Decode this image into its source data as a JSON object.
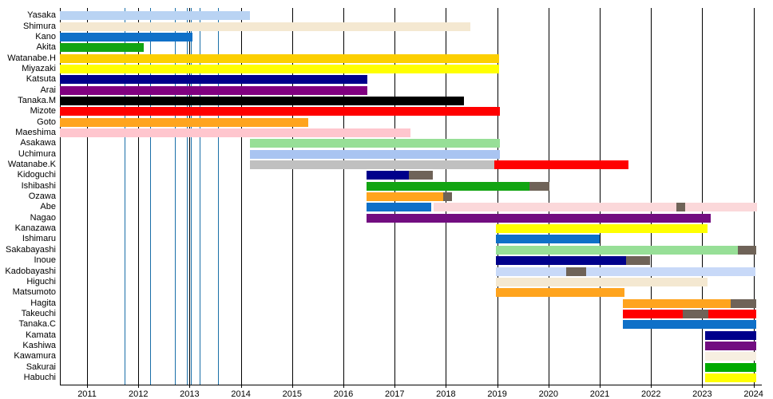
{
  "chart_data": {
    "type": "gantt",
    "title": "",
    "xlabel": "",
    "ylabel": "",
    "x_axis": {
      "min": 2010.47,
      "max": 2024.15,
      "tick_years": [
        2011,
        2012,
        2013,
        2014,
        2015,
        2016,
        2017,
        2018,
        2019,
        2020,
        2021,
        2022,
        2023,
        2024
      ],
      "tick_labels": [
        "2011",
        "2012",
        "2013",
        "2014",
        "2015",
        "2016",
        "2017",
        "2018",
        "2019",
        "2020",
        "2021",
        "2022",
        "2023",
        "2024"
      ],
      "grid": true
    },
    "event_lines": {
      "color": "#1a6fa8",
      "years": [
        2011.73,
        2012.23,
        2012.71,
        2012.95,
        2013.02,
        2013.19,
        2013.55
      ]
    },
    "palette": {
      "lightblue": "#b9d3f3",
      "wheat": "#f4e8d1",
      "blue": "#0f70c8",
      "green": "#12a412",
      "gold": "#fccf00",
      "yellow": "#ffff00",
      "navy": "#00008b",
      "purple": "#800080",
      "black": "#000000",
      "red": "#ff0000",
      "orange": "#ffa41e",
      "pink": "#ffc6ce",
      "lightgreen": "#97df97",
      "periblue": "#a9c4f1",
      "silver": "#c0c0c0",
      "gray": "#6f6358",
      "palepink": "#fbd8da",
      "darkpurple": "#720d80",
      "periwinkle": "#c8d9f8",
      "linen": "#f7efe1",
      "green2": "#00aa00"
    },
    "rows": [
      {
        "name": "Yasaka",
        "segments": [
          [
            2010.47,
            2014.17,
            "lightblue"
          ]
        ]
      },
      {
        "name": "Shimura",
        "segments": [
          [
            2010.47,
            2018.47,
            "wheat"
          ]
        ]
      },
      {
        "name": "Kano",
        "segments": [
          [
            2010.47,
            2013.05,
            "blue"
          ]
        ]
      },
      {
        "name": "Akita",
        "segments": [
          [
            2010.47,
            2012.1,
            "green"
          ]
        ]
      },
      {
        "name": "Watanabe.H",
        "segments": [
          [
            2010.47,
            2019.03,
            "gold"
          ]
        ]
      },
      {
        "name": "Miyazaki",
        "segments": [
          [
            2010.47,
            2019.03,
            "yellow"
          ]
        ]
      },
      {
        "name": "Katsuta",
        "segments": [
          [
            2010.47,
            2016.46,
            "navy"
          ]
        ]
      },
      {
        "name": "Arai",
        "segments": [
          [
            2010.47,
            2016.46,
            "purple"
          ]
        ]
      },
      {
        "name": "Tanaka.M",
        "segments": [
          [
            2010.47,
            2018.35,
            "black"
          ]
        ]
      },
      {
        "name": "Mizote",
        "segments": [
          [
            2010.47,
            2019.05,
            "red"
          ]
        ]
      },
      {
        "name": "Goto",
        "segments": [
          [
            2010.47,
            2015.32,
            "orange"
          ]
        ]
      },
      {
        "name": "Maeshima",
        "segments": [
          [
            2010.47,
            2017.3,
            "pink"
          ]
        ]
      },
      {
        "name": "Asakawa",
        "segments": [
          [
            2014.18,
            2019.05,
            "lightgreen"
          ]
        ]
      },
      {
        "name": "Uchimura",
        "segments": [
          [
            2014.18,
            2019.05,
            "periblue"
          ]
        ]
      },
      {
        "name": "Watanabe.K",
        "segments": [
          [
            2014.18,
            2018.95,
            "silver"
          ],
          [
            2018.95,
            2021.56,
            "red"
          ]
        ]
      },
      {
        "name": "Kidoguchi",
        "segments": [
          [
            2016.45,
            2017.28,
            "navy"
          ],
          [
            2017.28,
            2017.75,
            "gray"
          ]
        ]
      },
      {
        "name": "Ishibashi",
        "segments": [
          [
            2016.45,
            2019.63,
            "green"
          ],
          [
            2019.63,
            2020.02,
            "gray"
          ]
        ]
      },
      {
        "name": "Ozawa",
        "segments": [
          [
            2016.45,
            2017.95,
            "orange"
          ],
          [
            2017.95,
            2018.12,
            "gray"
          ]
        ]
      },
      {
        "name": "Abe",
        "segments": [
          [
            2016.45,
            2017.72,
            "blue"
          ],
          [
            2017.76,
            2022.49,
            "palepink"
          ],
          [
            2022.49,
            2022.66,
            "gray"
          ],
          [
            2022.66,
            2024.07,
            "palepink"
          ]
        ]
      },
      {
        "name": "Nagao",
        "segments": [
          [
            2016.45,
            2023.17,
            "darkpurple"
          ]
        ]
      },
      {
        "name": "Kanazawa",
        "segments": [
          [
            2018.98,
            2023.11,
            "yellow"
          ]
        ]
      },
      {
        "name": "Ishimaru",
        "segments": [
          [
            2018.98,
            2021.0,
            "blue"
          ]
        ]
      },
      {
        "name": "Sakabayashi",
        "segments": [
          [
            2018.98,
            2023.7,
            "lightgreen"
          ],
          [
            2023.7,
            2024.06,
            "gray"
          ]
        ]
      },
      {
        "name": "Inoue",
        "segments": [
          [
            2018.98,
            2021.51,
            "navy"
          ],
          [
            2021.51,
            2021.98,
            "gray"
          ]
        ]
      },
      {
        "name": "Kadobayashi",
        "segments": [
          [
            2018.98,
            2020.35,
            "periwinkle"
          ],
          [
            2020.35,
            2020.74,
            "gray"
          ],
          [
            2020.74,
            2024.04,
            "periwinkle"
          ]
        ]
      },
      {
        "name": "Higuchi",
        "segments": [
          [
            2018.98,
            2023.1,
            "wheat"
          ]
        ]
      },
      {
        "name": "Matsumoto",
        "segments": [
          [
            2018.98,
            2021.48,
            "orange"
          ]
        ]
      },
      {
        "name": "Hagita",
        "segments": [
          [
            2021.45,
            2023.55,
            "orange"
          ],
          [
            2023.55,
            2024.05,
            "gray"
          ]
        ]
      },
      {
        "name": "Takeuchi",
        "segments": [
          [
            2021.45,
            2022.62,
            "red"
          ],
          [
            2022.62,
            2023.11,
            "gray"
          ],
          [
            2023.11,
            2024.05,
            "red"
          ]
        ]
      },
      {
        "name": "Tanaka.C",
        "segments": [
          [
            2021.45,
            2024.05,
            "blue"
          ]
        ]
      },
      {
        "name": "Kamata",
        "segments": [
          [
            2023.05,
            2024.05,
            "navy"
          ]
        ]
      },
      {
        "name": "Kashiwa",
        "segments": [
          [
            2023.05,
            2024.05,
            "darkpurple"
          ]
        ]
      },
      {
        "name": "Kawamura",
        "segments": [
          [
            2023.05,
            2024.05,
            "linen"
          ]
        ]
      },
      {
        "name": "Sakurai",
        "segments": [
          [
            2023.05,
            2024.05,
            "green2"
          ]
        ]
      },
      {
        "name": "Habuchi",
        "segments": [
          [
            2023.05,
            2024.05,
            "yellow"
          ]
        ]
      }
    ]
  }
}
